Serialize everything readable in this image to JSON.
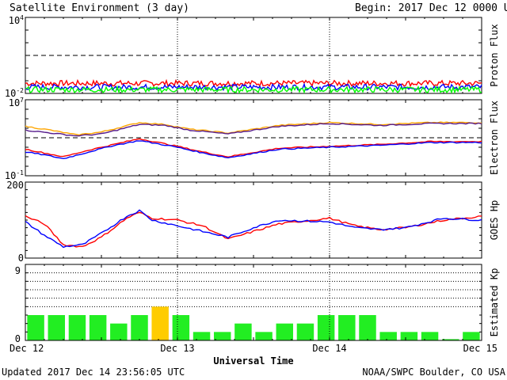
{
  "header": {
    "title": "Satellite Environment (3 day)",
    "begin": "Begin:  2017 Dec 12 0000 UTC"
  },
  "footer": {
    "updated": "Updated 2017 Dec 14 23:56:05 UTC",
    "credit": "NOAA/SWPC Boulder, CO USA"
  },
  "colors": {
    "red": "#ff0000",
    "blue": "#0000ff",
    "green": "#00ff00",
    "orange": "#ffa500",
    "purple": "#551a8b",
    "kp_normal": "#22ee22",
    "kp_elevated": "#ffcc00"
  },
  "chart_data": [
    {
      "id": "proton",
      "type": "line",
      "ylabel": "Proton Flux",
      "yscale": "log",
      "ylim_exp": [
        -2,
        4
      ],
      "tick_labels": [
        {
          "base": "10",
          "exp": "4",
          "at": 4
        },
        {
          "base": "10",
          "exp": "-2",
          "at": -2
        }
      ],
      "threshold_exp": 1,
      "x_hours": [
        0,
        72
      ],
      "series": [
        {
          "color": "red",
          "x": [
            0,
            12,
            24,
            36,
            48,
            60,
            72
          ],
          "log_values": [
            -1.2,
            -1.2,
            -1.2,
            -1.2,
            -1.2,
            -1.2,
            -1.2
          ]
        },
        {
          "color": "blue",
          "x": [
            0,
            12,
            24,
            36,
            48,
            60,
            72
          ],
          "log_values": [
            -1.5,
            -1.5,
            -1.5,
            -1.5,
            -1.5,
            -1.5,
            -1.5
          ]
        },
        {
          "color": "green",
          "x": [
            0,
            12,
            24,
            36,
            48,
            60,
            72
          ],
          "log_values": [
            -1.7,
            -1.7,
            -1.7,
            -1.7,
            -1.7,
            -1.7,
            -1.7
          ]
        }
      ]
    },
    {
      "id": "electron",
      "type": "line",
      "ylabel": "Electron Flux",
      "yscale": "log",
      "ylim_exp": [
        -1,
        7
      ],
      "tick_labels": [
        {
          "base": "10",
          "exp": "7",
          "at": 7
        },
        {
          "base": "10",
          "exp": "-1",
          "at": -1
        }
      ],
      "threshold_exp": 3,
      "x_hours": [
        0,
        72
      ],
      "series": [
        {
          "color": "orange",
          "x": [
            0,
            4,
            8,
            12,
            18,
            22,
            26,
            32,
            40,
            48,
            56,
            64,
            72
          ],
          "log_values": [
            4.2,
            3.8,
            3.3,
            3.6,
            4.6,
            4.4,
            3.9,
            3.5,
            4.3,
            4.6,
            4.4,
            4.6,
            4.6
          ]
        },
        {
          "color": "purple",
          "x": [
            0,
            4,
            8,
            12,
            18,
            22,
            26,
            32,
            40,
            48,
            56,
            64,
            72
          ],
          "log_values": [
            3.8,
            3.5,
            3.2,
            3.4,
            4.4,
            4.3,
            3.8,
            3.4,
            4.2,
            4.5,
            4.3,
            4.5,
            4.5
          ]
        },
        {
          "color": "red",
          "x": [
            0,
            3,
            6,
            10,
            14,
            18,
            24,
            28,
            32,
            40,
            48,
            56,
            64,
            72
          ],
          "log_values": [
            1.8,
            1.4,
            1.0,
            1.7,
            2.3,
            2.9,
            2.1,
            1.5,
            1.0,
            1.9,
            2.1,
            2.3,
            2.6,
            2.6
          ]
        },
        {
          "color": "blue",
          "x": [
            0,
            3,
            6,
            10,
            14,
            18,
            24,
            28,
            32,
            40,
            48,
            56,
            64,
            72
          ],
          "log_values": [
            1.5,
            1.2,
            0.8,
            1.5,
            2.2,
            2.7,
            2.0,
            1.4,
            0.9,
            1.8,
            2.0,
            2.2,
            2.5,
            2.5
          ]
        }
      ]
    },
    {
      "id": "hp",
      "type": "line",
      "ylabel": "GOES Hp",
      "ylim": [
        0,
        200
      ],
      "tick_labels": [
        "200",
        "0"
      ],
      "x_hours": [
        0,
        72
      ],
      "series": [
        {
          "color": "red",
          "x": [
            0,
            3,
            6,
            9,
            12,
            16,
            18,
            20,
            24,
            28,
            32,
            36,
            40,
            48,
            52,
            56,
            60,
            66,
            72
          ],
          "values": [
            110,
            90,
            35,
            30,
            55,
            105,
            120,
            105,
            100,
            85,
            50,
            70,
            90,
            105,
            85,
            75,
            80,
            100,
            110
          ]
        },
        {
          "color": "blue",
          "x": [
            0,
            3,
            6,
            9,
            12,
            16,
            18,
            20,
            24,
            28,
            32,
            36,
            40,
            48,
            52,
            56,
            60,
            66,
            72
          ],
          "values": [
            95,
            60,
            30,
            35,
            65,
            110,
            125,
            100,
            85,
            70,
            55,
            80,
            100,
            95,
            80,
            75,
            80,
            105,
            100
          ]
        }
      ]
    },
    {
      "id": "kp",
      "type": "bar",
      "ylabel": "Estimated Kp",
      "ylim": [
        0,
        9
      ],
      "tick_labels": [
        "9",
        "0"
      ],
      "gridlines": [
        4,
        5,
        6,
        7,
        8,
        9
      ],
      "values": [
        3,
        3,
        3,
        3,
        2,
        3,
        4,
        3,
        1,
        1,
        2,
        1,
        2,
        2,
        3,
        3,
        3,
        1,
        1,
        1,
        0,
        1
      ],
      "elevated_threshold": 4
    }
  ],
  "x_axis": {
    "label": "Universal Time",
    "ticks": [
      {
        "hour": 0,
        "label": "Dec 12"
      },
      {
        "hour": 24,
        "label": "Dec 13"
      },
      {
        "hour": 48,
        "label": "Dec 14"
      },
      {
        "hour": 72,
        "label": "Dec 15"
      }
    ]
  }
}
